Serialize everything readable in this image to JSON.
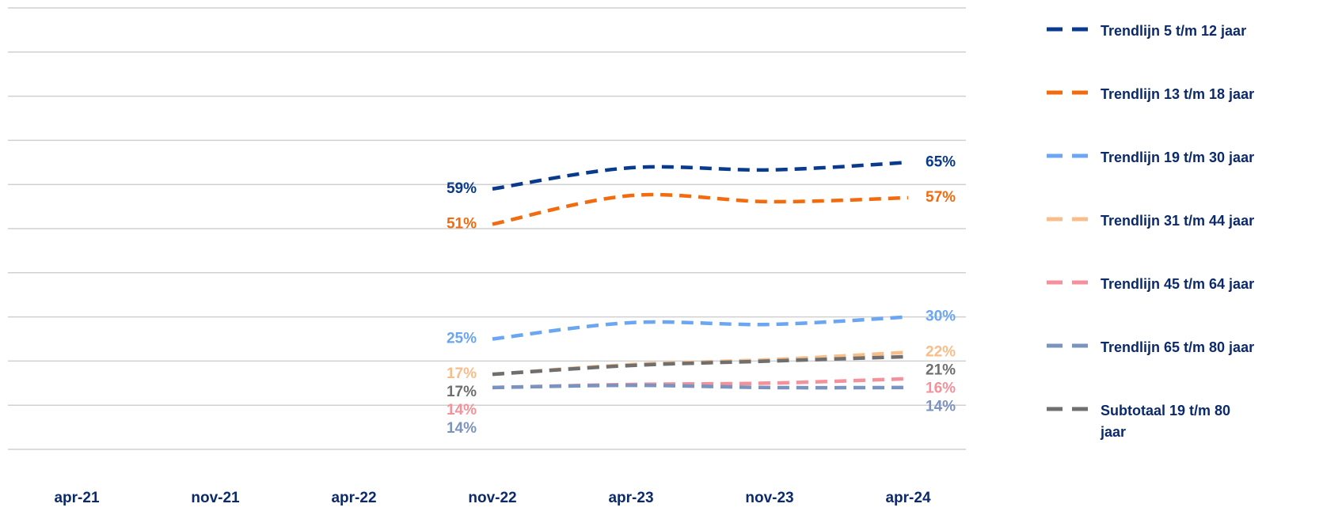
{
  "chart_data": {
    "type": "line",
    "categories": [
      "apr-21",
      "nov-21",
      "apr-22",
      "nov-22",
      "apr-23",
      "nov-23",
      "apr-24"
    ],
    "ylim": [
      0,
      100
    ],
    "yticks": [
      0,
      10,
      20,
      30,
      40,
      50,
      60,
      70,
      80,
      90,
      100
    ],
    "grid": true,
    "legend": "right",
    "series": [
      {
        "name": "Trendlijn 5 t/m 12 jaar",
        "color": "#0a3a8c",
        "values": [
          null,
          null,
          null,
          59,
          63.8,
          63.3,
          65
        ],
        "value_labels": [
          null,
          null,
          null,
          "59%",
          null,
          null,
          "65%"
        ]
      },
      {
        "name": "Trendlijn 13 t/m 18 jaar",
        "color": "#f26b0f",
        "values": [
          null,
          null,
          null,
          51,
          57.5,
          56.1,
          57
        ],
        "value_labels": [
          null,
          null,
          null,
          "51%",
          null,
          null,
          "57%"
        ]
      },
      {
        "name": "Trendlijn 19 t/m 30 jaar",
        "color": "#6aa6f2",
        "values": [
          null,
          null,
          null,
          25,
          28.7,
          28.3,
          30
        ],
        "value_labels": [
          null,
          null,
          null,
          "25%",
          null,
          null,
          "30%"
        ]
      },
      {
        "name": "Trendlijn 31 t/m 44 jaar",
        "color": "#f9bd8a",
        "values": [
          null,
          null,
          null,
          17,
          19.2,
          20.3,
          22
        ],
        "value_labels": [
          null,
          null,
          null,
          "17%",
          null,
          null,
          "22%"
        ]
      },
      {
        "name": "Trendlijn 45 t/m 64 jaar",
        "color": "#f4919b",
        "values": [
          null,
          null,
          null,
          14,
          14.7,
          15,
          16
        ],
        "value_labels": [
          null,
          null,
          null,
          "14%",
          null,
          null,
          "16%"
        ]
      },
      {
        "name": "Trendlijn 65 t/m 80 jaar",
        "color": "#7b93bf",
        "values": [
          null,
          null,
          null,
          14,
          14.5,
          14,
          14
        ],
        "value_labels": [
          null,
          null,
          null,
          "14%",
          null,
          null,
          "14%"
        ]
      },
      {
        "name": "Subtotaal 19 t/m 80 jaar",
        "color": "#6f6f6f",
        "values": [
          null,
          null,
          null,
          17,
          19,
          20,
          21
        ],
        "value_labels": [
          null,
          null,
          null,
          "17%",
          null,
          null,
          "21%"
        ]
      }
    ]
  }
}
